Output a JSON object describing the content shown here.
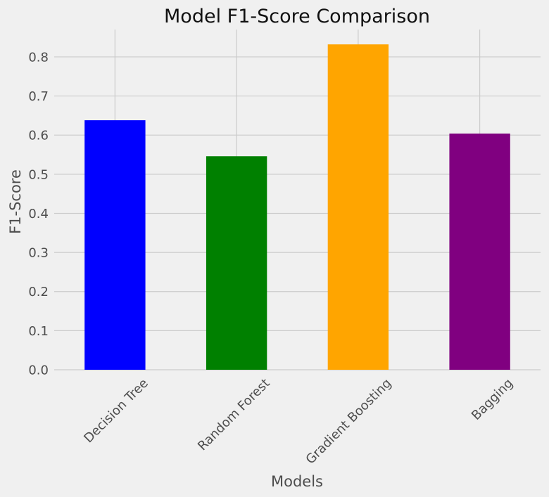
{
  "chart_data": {
    "type": "bar",
    "title": "Model F1-Score Comparison",
    "xlabel": "Models",
    "ylabel": "F1-Score",
    "categories": [
      "Decision Tree",
      "Random Forest",
      "Gradient Boosting",
      "Bagging"
    ],
    "values": [
      0.638,
      0.546,
      0.832,
      0.604
    ],
    "colors": [
      "#0000ff",
      "#008000",
      "#ffa500",
      "#800080"
    ],
    "ylim": [
      0,
      0.87
    ],
    "yticks": [
      0.0,
      0.1,
      0.2,
      0.3,
      0.4,
      0.5,
      0.6,
      0.7,
      0.8
    ],
    "ytick_labels": [
      "0.0",
      "0.1",
      "0.2",
      "0.3",
      "0.4",
      "0.5",
      "0.6",
      "0.7",
      "0.8"
    ],
    "grid": true,
    "background": "#f0f0f0"
  }
}
